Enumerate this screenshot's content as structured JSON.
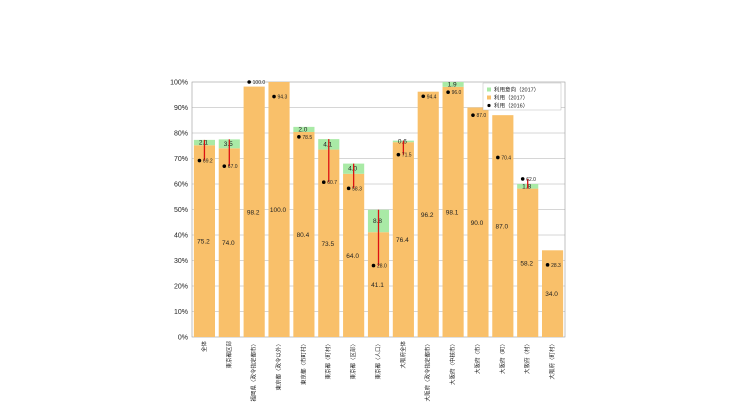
{
  "chart_data": {
    "type": "bar",
    "ylim": [
      0,
      100
    ],
    "y_ticks": [
      "0%",
      "10%",
      "20%",
      "30%",
      "40%",
      "50%",
      "60%",
      "70%",
      "80%",
      "90%",
      "100%"
    ],
    "categories": [
      "全体",
      "東京都区部",
      "福岡県〈政令指定都市〉",
      "東京都〈政令以外〉",
      "東京都〈市町村〉",
      "東京都〈町村〉",
      "東京都〈区部〉",
      "東京都〈人口〉",
      "大阪府全体",
      "大阪府〈政令指定都市〉",
      "大阪府〈中核市〉",
      "大阪府〈市〉",
      "大阪府〈町〉",
      "大阪府〈村〉",
      "大阪府〈町村〉"
    ],
    "legend": [
      "利用意向（2017）",
      "利用（2017）",
      "利用（2016）"
    ],
    "colors": {
      "usage": "#f9c06a",
      "intent": "#a9eaa6",
      "marker": "#000000",
      "decline": "#dd1111",
      "axis": "#666666",
      "grid": "#999999"
    },
    "series": [
      {
        "name": "利用（2017）",
        "values": [
          75.2,
          74.0,
          98.2,
          100.0,
          80.4,
          73.5,
          64.0,
          41.1,
          76.4,
          96.2,
          98.1,
          90.0,
          87.0,
          58.2,
          34.0
        ],
        "labels": [
          "75.2",
          "74.0",
          "98.2",
          "100.0",
          "80.4",
          "73.5",
          "64.0",
          "41.1",
          "76.4",
          "96.2",
          "98.1",
          "90.0",
          "87.0",
          "58.2",
          "34.0"
        ]
      },
      {
        "name": "利用意向（2017）",
        "values": [
          2.1,
          3.5,
          0,
          0,
          2.0,
          4.1,
          4.0,
          8.8,
          0.6,
          0,
          1.9,
          0,
          0,
          1.8,
          0
        ],
        "labels": [
          "2.1",
          "3.5",
          "",
          "",
          "2.0",
          "4.1",
          "4.0",
          "8.8",
          "0.6",
          "",
          "1.9",
          "",
          "",
          "1.8",
          ""
        ]
      },
      {
        "name": "利用（2016）",
        "values": [
          69.2,
          67.0,
          100.0,
          94.3,
          78.5,
          60.7,
          58.3,
          28.0,
          71.5,
          94.4,
          96.0,
          87.0,
          70.4,
          62.0,
          28.3
        ],
        "labels": [
          "69.2",
          "67.0",
          "100.0",
          "94.3",
          "78.5",
          "60.7",
          "58.3",
          "28.0",
          "71.5",
          "94.4",
          "96.0",
          "87.0",
          "70.4",
          "62.0",
          "28.3"
        ]
      }
    ]
  }
}
